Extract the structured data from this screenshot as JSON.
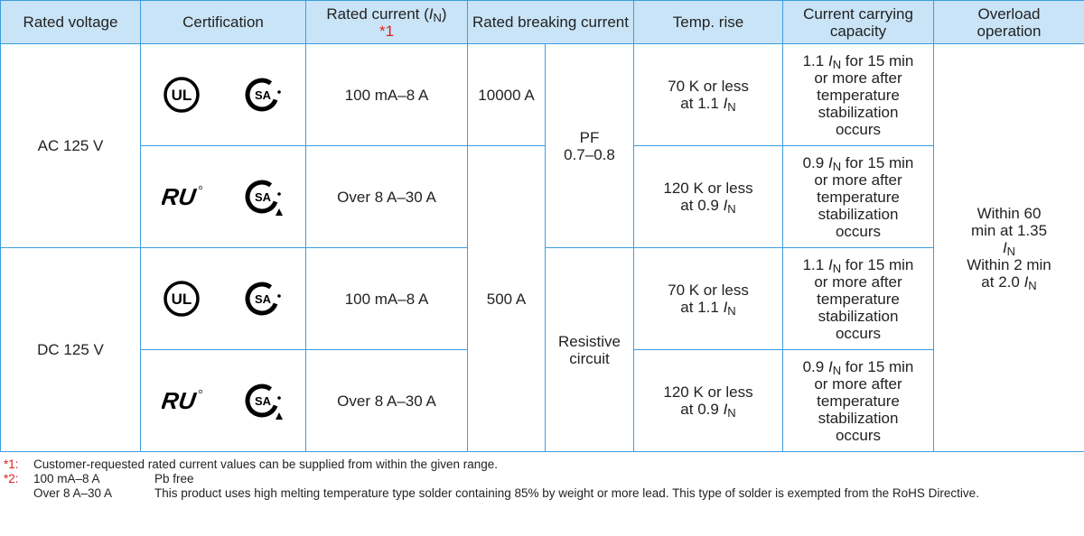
{
  "header": {
    "rated_voltage": "Rated voltage",
    "certification": "Certification",
    "rated_current": {
      "pre": "Rated current (",
      "sym": "I",
      "sub": "N",
      "post": ")",
      "note": "*1"
    },
    "breaking": "Rated breaking current",
    "temp_rise": "Temp. rise",
    "capacity": "Current carrying capacity",
    "overload": "Overload operation"
  },
  "rows": [
    {
      "voltage": "AC 125 V",
      "certification": [
        "UL",
        "SA"
      ],
      "current": "100 mA–8 A",
      "breaking_current": "10000 A",
      "breaking_condition": [
        "PF",
        "0.7–0.8"
      ],
      "temp_rise": {
        "pre": "70 K or less at 1.1 ",
        "sym": "I",
        "sub": "N"
      },
      "capacity": {
        "pre": "1.1 ",
        "sym": "I",
        "sub": "N",
        "post": " for 15 min or more after temperature stabilization occurs"
      },
      "overload": [
        {
          "pre": "Within 60 min at 1.35 ",
          "sym": "I",
          "sub": "N"
        },
        {
          "pre": "Within 2 min at 2.0 ",
          "sym": "I",
          "sub": "N"
        }
      ]
    },
    {
      "certification": [
        "RU",
        "SA"
      ],
      "current": "Over 8 A–30 A",
      "breaking_current": "500 A",
      "temp_rise": {
        "pre": "120 K or less at 0.9 ",
        "sym": "I",
        "sub": "N"
      },
      "capacity": {
        "pre": "0.9 ",
        "sym": "I",
        "sub": "N",
        "post": " for 15 min or more after temperature stabilization occurs"
      }
    },
    {
      "voltage": "DC 125 V",
      "certification": [
        "UL",
        "SA"
      ],
      "current": "100 mA–8 A",
      "breaking_condition": [
        "Resistive",
        "circuit"
      ],
      "temp_rise": {
        "pre": "70 K or less at 1.1 ",
        "sym": "I",
        "sub": "N"
      },
      "capacity": {
        "pre": "1.1 ",
        "sym": "I",
        "sub": "N",
        "post": " for 15 min or more after temperature stabilization occurs"
      }
    },
    {
      "certification": [
        "RU",
        "SA"
      ],
      "current": "Over 8 A–30 A",
      "temp_rise": {
        "pre": "120 K or less at 0.9 ",
        "sym": "I",
        "sub": "N"
      },
      "capacity": {
        "pre": "0.9 ",
        "sym": "I",
        "sub": "N",
        "post": " for 15 min or more after temperature stabilization occurs"
      }
    }
  ],
  "notes": [
    {
      "mark": "*1:",
      "text": "Customer-requested rated current values can be supplied from within the given range."
    },
    {
      "mark": "*2:",
      "items": [
        {
          "label": "100 mA–8 A",
          "text": "Pb free"
        },
        {
          "label": "Over 8 A–30 A",
          "text": "This product uses high melting temperature type solder containing 85% by weight or more lead. This type of solder is exempted from the RoHS Directive."
        }
      ]
    }
  ]
}
